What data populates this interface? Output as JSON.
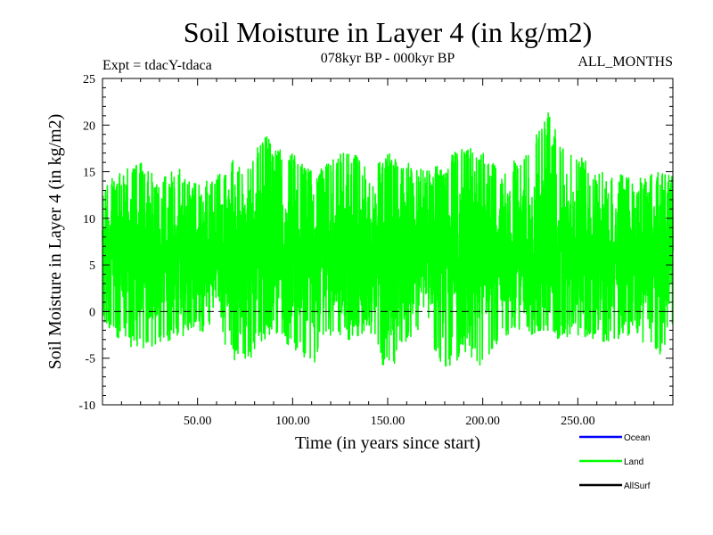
{
  "chart_data": {
    "type": "line",
    "title": "Soil Moisture in Layer 4 (in kg/m2)",
    "subtitle_left": "Expt = tdacY-tdaca",
    "subtitle_center": "078kyr BP - 000kyr BP",
    "subtitle_right": "ALL_MONTHS",
    "xlabel": "Time (in years since start)",
    "ylabel": "Soil Moisture in Layer 4 (in kg/m2)",
    "xlim": [
      0,
      300
    ],
    "ylim": [
      -10,
      25
    ],
    "xticks": [
      {
        "value": 50,
        "label": "50.00"
      },
      {
        "value": 100,
        "label": "100.00"
      },
      {
        "value": 150,
        "label": "150.00"
      },
      {
        "value": 200,
        "label": "200.00"
      },
      {
        "value": 250,
        "label": "250.00"
      }
    ],
    "yticks": [
      {
        "value": -10,
        "label": "-10"
      },
      {
        "value": -5,
        "label": "-5"
      },
      {
        "value": 0,
        "label": "0"
      },
      {
        "value": 5,
        "label": "5"
      },
      {
        "value": 10,
        "label": "10"
      },
      {
        "value": 15,
        "label": "15"
      },
      {
        "value": 20,
        "label": "20"
      },
      {
        "value": 25,
        "label": "25"
      }
    ],
    "reference_line": 0,
    "legend": [
      {
        "name": "Ocean",
        "color": "#0000ff"
      },
      {
        "name": "Land",
        "color": "#00ff00"
      },
      {
        "name": "AllSurf",
        "color": "#000000"
      }
    ],
    "series": [
      {
        "name": "Land",
        "color": "#00ff00",
        "points_per_year": 12,
        "envelope": {
          "x": [
            0,
            10,
            20,
            30,
            40,
            50,
            60,
            70,
            78,
            85,
            90,
            100,
            110,
            120,
            130,
            140,
            150,
            160,
            170,
            180,
            190,
            200,
            210,
            220,
            230,
            235,
            240,
            250,
            260,
            270,
            280,
            290,
            300
          ],
          "max": [
            13.5,
            15.0,
            16.0,
            14.0,
            15.5,
            13.5,
            14.5,
            16.5,
            15.5,
            19.5,
            17.5,
            17.0,
            15.0,
            16.0,
            18.0,
            15.0,
            17.0,
            16.0,
            15.0,
            16.0,
            18.0,
            17.0,
            15.0,
            17.0,
            19.5,
            22.2,
            18.0,
            17.0,
            15.0,
            15.0,
            14.0,
            15.0,
            14.5
          ],
          "min": [
            -1.0,
            -3.5,
            -4.0,
            -3.5,
            -3.0,
            -2.0,
            -3.0,
            -5.5,
            -5.0,
            -3.0,
            -2.0,
            -4.0,
            -6.5,
            -2.5,
            -3.0,
            -2.0,
            -7.0,
            -3.0,
            -2.0,
            -6.5,
            -4.5,
            -6.0,
            -2.5,
            -3.0,
            -2.0,
            -2.0,
            -3.0,
            -2.5,
            -3.0,
            -3.5,
            -2.0,
            -5.0,
            -3.5
          ]
        },
        "mean": 6.0
      }
    ]
  }
}
